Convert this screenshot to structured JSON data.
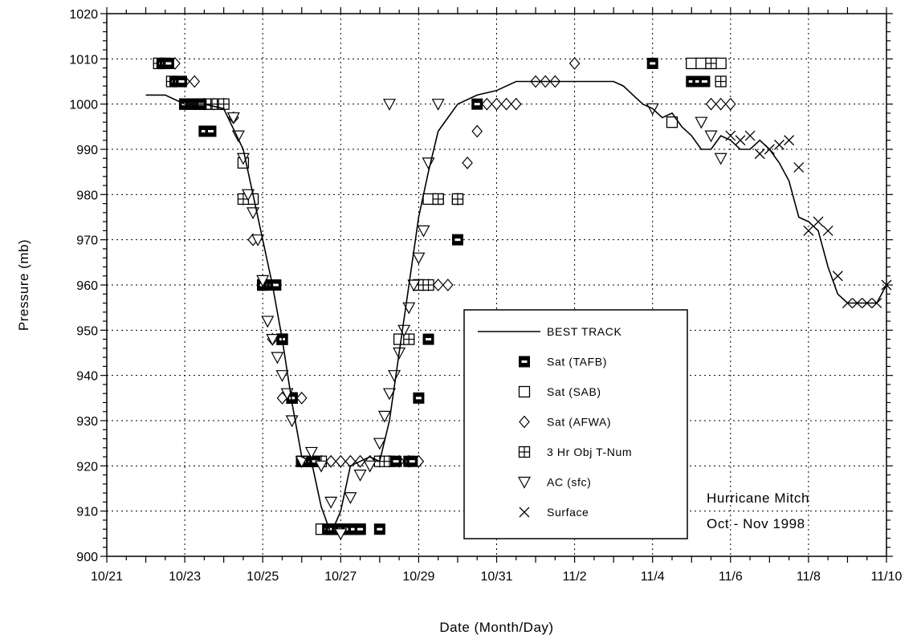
{
  "chart_data": {
    "type": "scatter",
    "title": "",
    "xlabel": "Date (Month/Day)",
    "ylabel": "Pressure (mb)",
    "xlim": [
      "10/21",
      "11/10"
    ],
    "ylim": [
      900,
      1020
    ],
    "grid": true,
    "legend_position": "bottom-center",
    "x_ticks": [
      "10/21",
      "10/23",
      "10/25",
      "10/27",
      "10/29",
      "10/31",
      "11/2",
      "11/4",
      "11/6",
      "11/8",
      "11/10"
    ],
    "x_tick_days": [
      0,
      2,
      4,
      6,
      8,
      10,
      12,
      14,
      16,
      18,
      20
    ],
    "y_ticks": [
      900,
      910,
      920,
      930,
      940,
      950,
      960,
      970,
      980,
      990,
      1000,
      1010,
      1020
    ],
    "annotation": [
      "Hurricane Mitch",
      "Oct - Nov 1998"
    ],
    "series": [
      {
        "name": "BEST TRACK",
        "marker": "line",
        "x": [
          "10/22 00",
          "10/22 12",
          "10/23 00",
          "10/23 12",
          "10/24 00",
          "10/24 12",
          "10/24 18",
          "10/25 00",
          "10/25 06",
          "10/25 12",
          "10/25 18",
          "10/26 00",
          "10/26 06",
          "10/26 12",
          "10/26 18",
          "10/27 00",
          "10/27 06",
          "10/27 12",
          "10/27 18",
          "10/28 00",
          "10/28 06",
          "10/28 12",
          "10/28 18",
          "10/29 00",
          "10/29 06",
          "10/29 12",
          "10/29 18",
          "10/30 00",
          "10/30 12",
          "10/31 00",
          "10/31 12",
          "11/01 00",
          "11/01 12",
          "11/02 00",
          "11/02 12",
          "11/03 00",
          "11/03 06",
          "11/03 12",
          "11/03 18",
          "11/04 00",
          "11/04 06",
          "11/04 12",
          "11/04 18",
          "11/05 00",
          "11/05 06",
          "11/05 12",
          "11/05 18",
          "11/06 00",
          "11/06 06",
          "11/06 12",
          "11/06 18",
          "11/07 00",
          "11/07 06",
          "11/07 12",
          "11/07 18",
          "11/08 00",
          "11/08 06",
          "11/08 12",
          "11/08 18",
          "11/09 00",
          "11/09 06",
          "11/09 12",
          "11/09 18",
          "11/10 00"
        ],
        "y": [
          1002,
          1002,
          1000,
          1000,
          999,
          990,
          980,
          970,
          960,
          948,
          934,
          922,
          921,
          911,
          905,
          910,
          920,
          921,
          922,
          921,
          930,
          945,
          960,
          975,
          985,
          994,
          997,
          1000,
          1002,
          1003,
          1005,
          1005,
          1005,
          1005,
          1005,
          1005,
          1004,
          1002,
          1000,
          999,
          997,
          998,
          995,
          993,
          990,
          990,
          993,
          992,
          990,
          990,
          992,
          990,
          987,
          983,
          975,
          974,
          972,
          964,
          958,
          956,
          956,
          956,
          956,
          960
        ]
      },
      {
        "name": "Sat (TAFB)",
        "marker": "filled-square",
        "x": [
          "10/22 10",
          "10/22 12",
          "10/22 14",
          "10/22 18",
          "10/22 20",
          "10/22 22",
          "10/23 00",
          "10/23 04",
          "10/23 06",
          "10/23 08",
          "10/23 10",
          "10/23 12",
          "10/23 16",
          "10/25 00",
          "10/25 04",
          "10/25 06",
          "10/25 08",
          "10/25 12",
          "10/25 18",
          "10/26 00",
          "10/26 02",
          "10/26 04",
          "10/26 06",
          "10/26 08",
          "10/26 16",
          "10/26 18",
          "10/26 22",
          "10/27 00",
          "10/27 04",
          "10/27 08",
          "10/27 12",
          "10/28 00",
          "10/28 10",
          "10/28 18",
          "10/28 20",
          "10/29 00",
          "10/29 06",
          "10/30 00",
          "10/30 12",
          "11/04 00",
          "11/05 00",
          "11/05 04",
          "11/05 08"
        ],
        "y": [
          1009,
          1009,
          1009,
          1005,
          1005,
          1005,
          1000,
          1000,
          1000,
          1000,
          1000,
          994,
          994,
          960,
          960,
          960,
          960,
          948,
          935,
          921,
          921,
          921,
          921,
          921,
          906,
          906,
          906,
          906,
          906,
          906,
          906,
          906,
          921,
          921,
          921,
          935,
          948,
          970,
          1000,
          1009,
          1005,
          1005,
          1005
        ]
      },
      {
        "name": "Sat (SAB)",
        "marker": "open-square",
        "x": [
          "10/23 12",
          "10/24 12",
          "10/24 18",
          "10/25 00",
          "10/25 12",
          "10/25 18",
          "10/26 00",
          "10/26 12",
          "10/26 18",
          "10/28 12",
          "10/29 00",
          "10/29 06",
          "10/29 12",
          "10/30 00",
          "11/04 12",
          "11/05 00",
          "11/05 06",
          "11/05 12",
          "11/05 18"
        ],
        "y": [
          1000,
          987,
          979,
          960,
          948,
          935,
          921,
          906,
          906,
          948,
          960,
          979,
          979,
          979,
          996,
          1009,
          1009,
          1009,
          1009
        ]
      },
      {
        "name": "Sat (AFWA)",
        "marker": "diamond",
        "x": [
          "10/22 18",
          "10/23 00",
          "10/23 06",
          "10/23 12",
          "10/23 18",
          "10/24 00",
          "10/24 06",
          "10/24 12",
          "10/24 18",
          "10/25 00",
          "10/25 06",
          "10/25 12",
          "10/25 18",
          "10/26 00",
          "10/26 06",
          "10/26 12",
          "10/26 18",
          "10/27 00",
          "10/27 06",
          "10/27 12",
          "10/27 18",
          "10/28 00",
          "10/28 06",
          "10/28 12",
          "10/28 18",
          "10/29 00",
          "10/29 06",
          "10/29 12",
          "10/29 18",
          "10/30 00",
          "10/30 06",
          "10/30 12",
          "10/30 18",
          "10/31 00",
          "10/31 06",
          "10/31 12",
          "11/01 00",
          "11/01 06",
          "11/01 12",
          "11/02 00",
          "11/05 12",
          "11/05 18",
          "11/06 00"
        ],
        "y": [
          1009,
          1005,
          1005,
          1000,
          1000,
          1000,
          997,
          979,
          970,
          960,
          948,
          935,
          935,
          935,
          921,
          921,
          921,
          921,
          921,
          921,
          921,
          921,
          921,
          921,
          921,
          921,
          960,
          960,
          960,
          979,
          987,
          994,
          1000,
          1000,
          1000,
          1000,
          1005,
          1005,
          1005,
          1009,
          1000,
          1000,
          1000
        ]
      },
      {
        "name": "3 Hr Obj T-Num",
        "marker": "crossed-square",
        "x": [
          "10/22 08",
          "10/22 12",
          "10/22 16",
          "10/22 20",
          "10/23 00",
          "10/23 04",
          "10/23 08",
          "10/23 12",
          "10/23 16",
          "10/23 20",
          "10/24 00",
          "10/24 12",
          "10/25 00",
          "10/25 12",
          "10/25 18",
          "10/26 00",
          "10/26 06",
          "10/26 12",
          "10/26 18",
          "10/27 00",
          "10/27 06",
          "10/27 12",
          "10/28 00",
          "10/28 06",
          "10/28 18",
          "10/29 00",
          "10/29 06",
          "10/29 12",
          "10/30 00",
          "11/05 12",
          "11/05 18"
        ],
        "y": [
          1009,
          1009,
          1005,
          1005,
          1000,
          1000,
          1000,
          1000,
          1000,
          1000,
          1000,
          979,
          960,
          948,
          935,
          921,
          921,
          921,
          906,
          906,
          906,
          906,
          921,
          921,
          948,
          960,
          960,
          979,
          979,
          1009,
          1005
        ]
      },
      {
        "name": "AC (sfc)",
        "marker": "triangle-down",
        "x": [
          "10/24 06",
          "10/24 09",
          "10/24 12",
          "10/24 15",
          "10/24 18",
          "10/24 21",
          "10/25 00",
          "10/25 03",
          "10/25 06",
          "10/25 09",
          "10/25 12",
          "10/25 15",
          "10/25 18",
          "10/26 00",
          "10/26 06",
          "10/26 12",
          "10/26 18",
          "10/27 00",
          "10/27 06",
          "10/27 12",
          "10/27 18",
          "10/28 00",
          "10/28 03",
          "10/28 06",
          "10/28 09",
          "10/28 12",
          "10/28 15",
          "10/28 18",
          "10/28 21",
          "10/29 00",
          "10/29 03",
          "10/29 06",
          "10/28 06",
          "10/29 12",
          "11/04 00",
          "11/05 06",
          "11/05 12",
          "11/05 18"
        ],
        "y": [
          997,
          993,
          988,
          980,
          976,
          970,
          961,
          952,
          948,
          944,
          940,
          936,
          930,
          921,
          923,
          920,
          912,
          905,
          913,
          918,
          920,
          925,
          931,
          936,
          940,
          945,
          950,
          955,
          960,
          966,
          972,
          987,
          1000,
          1000,
          999,
          996,
          993,
          988
        ]
      },
      {
        "name": "Surface",
        "marker": "x",
        "x": [
          "11/06 00",
          "11/06 06",
          "11/06 12",
          "11/06 18",
          "11/07 00",
          "11/07 06",
          "11/07 12",
          "11/07 18",
          "11/08 00",
          "11/08 06",
          "11/08 12",
          "11/08 18",
          "11/09 00",
          "11/09 06",
          "11/09 12",
          "11/09 18",
          "11/10 00"
        ],
        "y": [
          993,
          992,
          993,
          989,
          990,
          991,
          992,
          986,
          972,
          974,
          972,
          962,
          956,
          956,
          956,
          956,
          960
        ]
      }
    ]
  }
}
